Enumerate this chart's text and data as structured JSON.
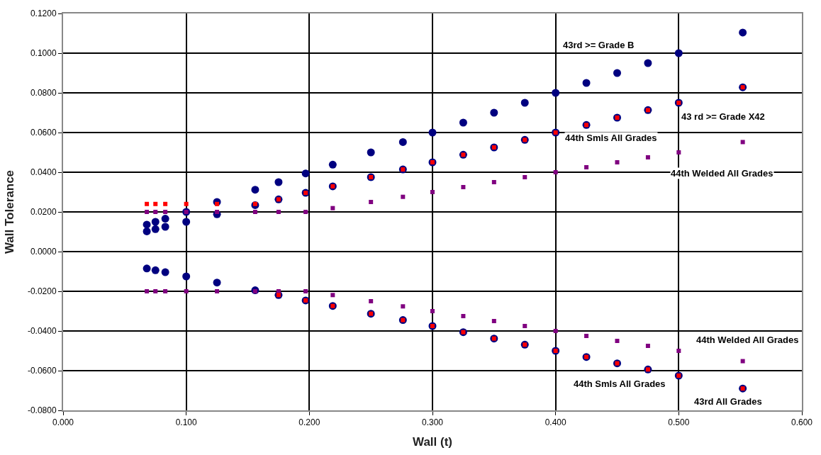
{
  "chart_data": {
    "type": "scatter",
    "xlabel": "Wall (t)",
    "ylabel": "Wall Tolerance",
    "xlim": [
      0,
      0.6
    ],
    "xticks": [
      {
        "value": 0,
        "label": "0.000"
      },
      {
        "value": 0.1,
        "label": "0.100"
      },
      {
        "value": 0.2,
        "label": "0.200"
      },
      {
        "value": 0.3,
        "label": "0.300"
      },
      {
        "value": 0.4,
        "label": "0.400"
      },
      {
        "value": 0.5,
        "label": "0.500"
      },
      {
        "value": 0.6,
        "label": "0.600"
      }
    ],
    "ylim": [
      -0.08,
      0.12
    ],
    "yticks": [
      {
        "value": -0.08,
        "label": "-0.0800"
      },
      {
        "value": -0.06,
        "label": "-0.0600"
      },
      {
        "value": -0.04,
        "label": "-0.0400"
      },
      {
        "value": -0.02,
        "label": "-0.0200"
      },
      {
        "value": 0,
        "label": "0.0000"
      },
      {
        "value": 0.02,
        "label": "0.0200"
      },
      {
        "value": 0.04,
        "label": "0.0400"
      },
      {
        "value": 0.06,
        "label": "0.0600"
      },
      {
        "value": 0.08,
        "label": "0.0800"
      },
      {
        "value": 0.1,
        "label": "0.1000"
      },
      {
        "value": 0.12,
        "label": "0.1200"
      }
    ],
    "grid": true,
    "series": [
      {
        "color": "#800080",
        "marker": "square",
        "x": [
          0.068,
          0.075,
          0.083,
          0.1,
          0.125,
          0.156,
          0.175,
          0.197,
          0.219,
          0.25,
          0.276,
          0.3,
          0.325,
          0.35,
          0.375,
          0.4,
          0.425,
          0.45,
          0.475,
          0.5,
          0.552,
          0.068,
          0.075,
          0.083,
          0.1,
          0.125,
          0.156,
          0.175,
          0.197,
          0.219,
          0.25,
          0.276,
          0.3,
          0.325,
          0.35,
          0.375,
          0.4,
          0.425,
          0.45,
          0.475,
          0.5,
          0.552
        ],
        "values": [
          0.02,
          0.02,
          0.02,
          0.02,
          0.02,
          0.02,
          0.02,
          0.02,
          0.0219,
          0.025,
          0.0276,
          0.03,
          0.0325,
          0.035,
          0.0375,
          0.04,
          0.0425,
          0.045,
          0.0475,
          0.05,
          0.0552,
          -0.02,
          -0.02,
          -0.02,
          -0.02,
          -0.02,
          -0.02,
          -0.02,
          -0.02,
          -0.0219,
          -0.025,
          -0.0276,
          -0.03,
          -0.0325,
          -0.035,
          -0.0375,
          -0.04,
          -0.0425,
          -0.045,
          -0.0475,
          -0.05,
          -0.0552
        ]
      },
      {
        "color": "#ff0000",
        "marker": "square",
        "x": [
          0.068,
          0.075,
          0.083,
          0.1,
          0.125,
          0.156,
          0.175,
          0.197,
          0.219,
          0.25,
          0.276,
          0.3,
          0.325,
          0.35,
          0.375,
          0.4,
          0.425,
          0.45,
          0.475,
          0.5,
          0.552,
          0.175,
          0.197,
          0.219,
          0.25,
          0.276,
          0.3,
          0.325,
          0.35,
          0.375,
          0.4,
          0.425,
          0.45,
          0.475,
          0.5,
          0.552
        ],
        "values": [
          0.024,
          0.024,
          0.024,
          0.024,
          0.024,
          0.024,
          0.0263,
          0.0296,
          0.0329,
          0.0375,
          0.0414,
          0.045,
          0.0488,
          0.0525,
          0.0563,
          0.06,
          0.0638,
          0.0675,
          0.0713,
          0.075,
          0.0828,
          -0.0219,
          -0.0246,
          -0.0274,
          -0.0313,
          -0.0345,
          -0.0375,
          -0.0406,
          -0.0438,
          -0.0469,
          -0.05,
          -0.0531,
          -0.0563,
          -0.0594,
          -0.0625,
          -0.069
        ]
      },
      {
        "color": "#000080",
        "marker": "circle",
        "x": [
          0.068,
          0.075,
          0.083,
          0.1,
          0.125,
          0.156,
          0.175,
          0.197,
          0.219,
          0.25,
          0.276,
          0.3,
          0.325,
          0.35,
          0.375,
          0.4,
          0.425,
          0.45,
          0.475,
          0.5,
          0.552
        ],
        "values": [
          0.0136,
          0.015,
          0.0166,
          0.02,
          0.025,
          0.0312,
          0.035,
          0.0394,
          0.0438,
          0.05,
          0.0552,
          0.06,
          0.065,
          0.07,
          0.075,
          0.08,
          0.085,
          0.09,
          0.095,
          0.1,
          0.1104
        ]
      },
      {
        "color": "#000080",
        "marker": "circle",
        "x": [
          0.068,
          0.075,
          0.083,
          0.1,
          0.125,
          0.156,
          0.175,
          0.197,
          0.219,
          0.25,
          0.276,
          0.3,
          0.325,
          0.35,
          0.375,
          0.4,
          0.425,
          0.45,
          0.475,
          0.5,
          0.552
        ],
        "values": [
          0.0102,
          0.0113,
          0.0125,
          0.015,
          0.0188,
          0.0234,
          0.0263,
          0.0296,
          0.0329,
          0.0375,
          0.0414,
          0.045,
          0.0488,
          0.0525,
          0.0563,
          0.06,
          0.0638,
          0.0675,
          0.0713,
          0.075,
          0.0828
        ]
      },
      {
        "color": "#000080",
        "marker": "circle",
        "x": [
          0.068,
          0.075,
          0.083,
          0.1,
          0.125,
          0.156,
          0.175,
          0.197,
          0.219,
          0.25,
          0.276,
          0.3,
          0.325,
          0.35,
          0.375,
          0.4,
          0.425,
          0.45,
          0.475,
          0.5,
          0.552
        ],
        "values": [
          -0.0085,
          -0.0094,
          -0.0104,
          -0.0125,
          -0.0156,
          -0.0195,
          -0.0219,
          -0.0246,
          -0.0274,
          -0.0313,
          -0.0345,
          -0.0375,
          -0.0406,
          -0.0438,
          -0.0469,
          -0.05,
          -0.0531,
          -0.0563,
          -0.0594,
          -0.0625,
          -0.069
        ]
      }
    ],
    "annotations": [
      "43rd >= Grade B",
      "43 rd >= Grade X42",
      "44th Smls All Grades",
      "44th Welded All Grades",
      "44th Welded All Grades",
      "44th Smls All Grades",
      "43rd All Grades"
    ]
  }
}
